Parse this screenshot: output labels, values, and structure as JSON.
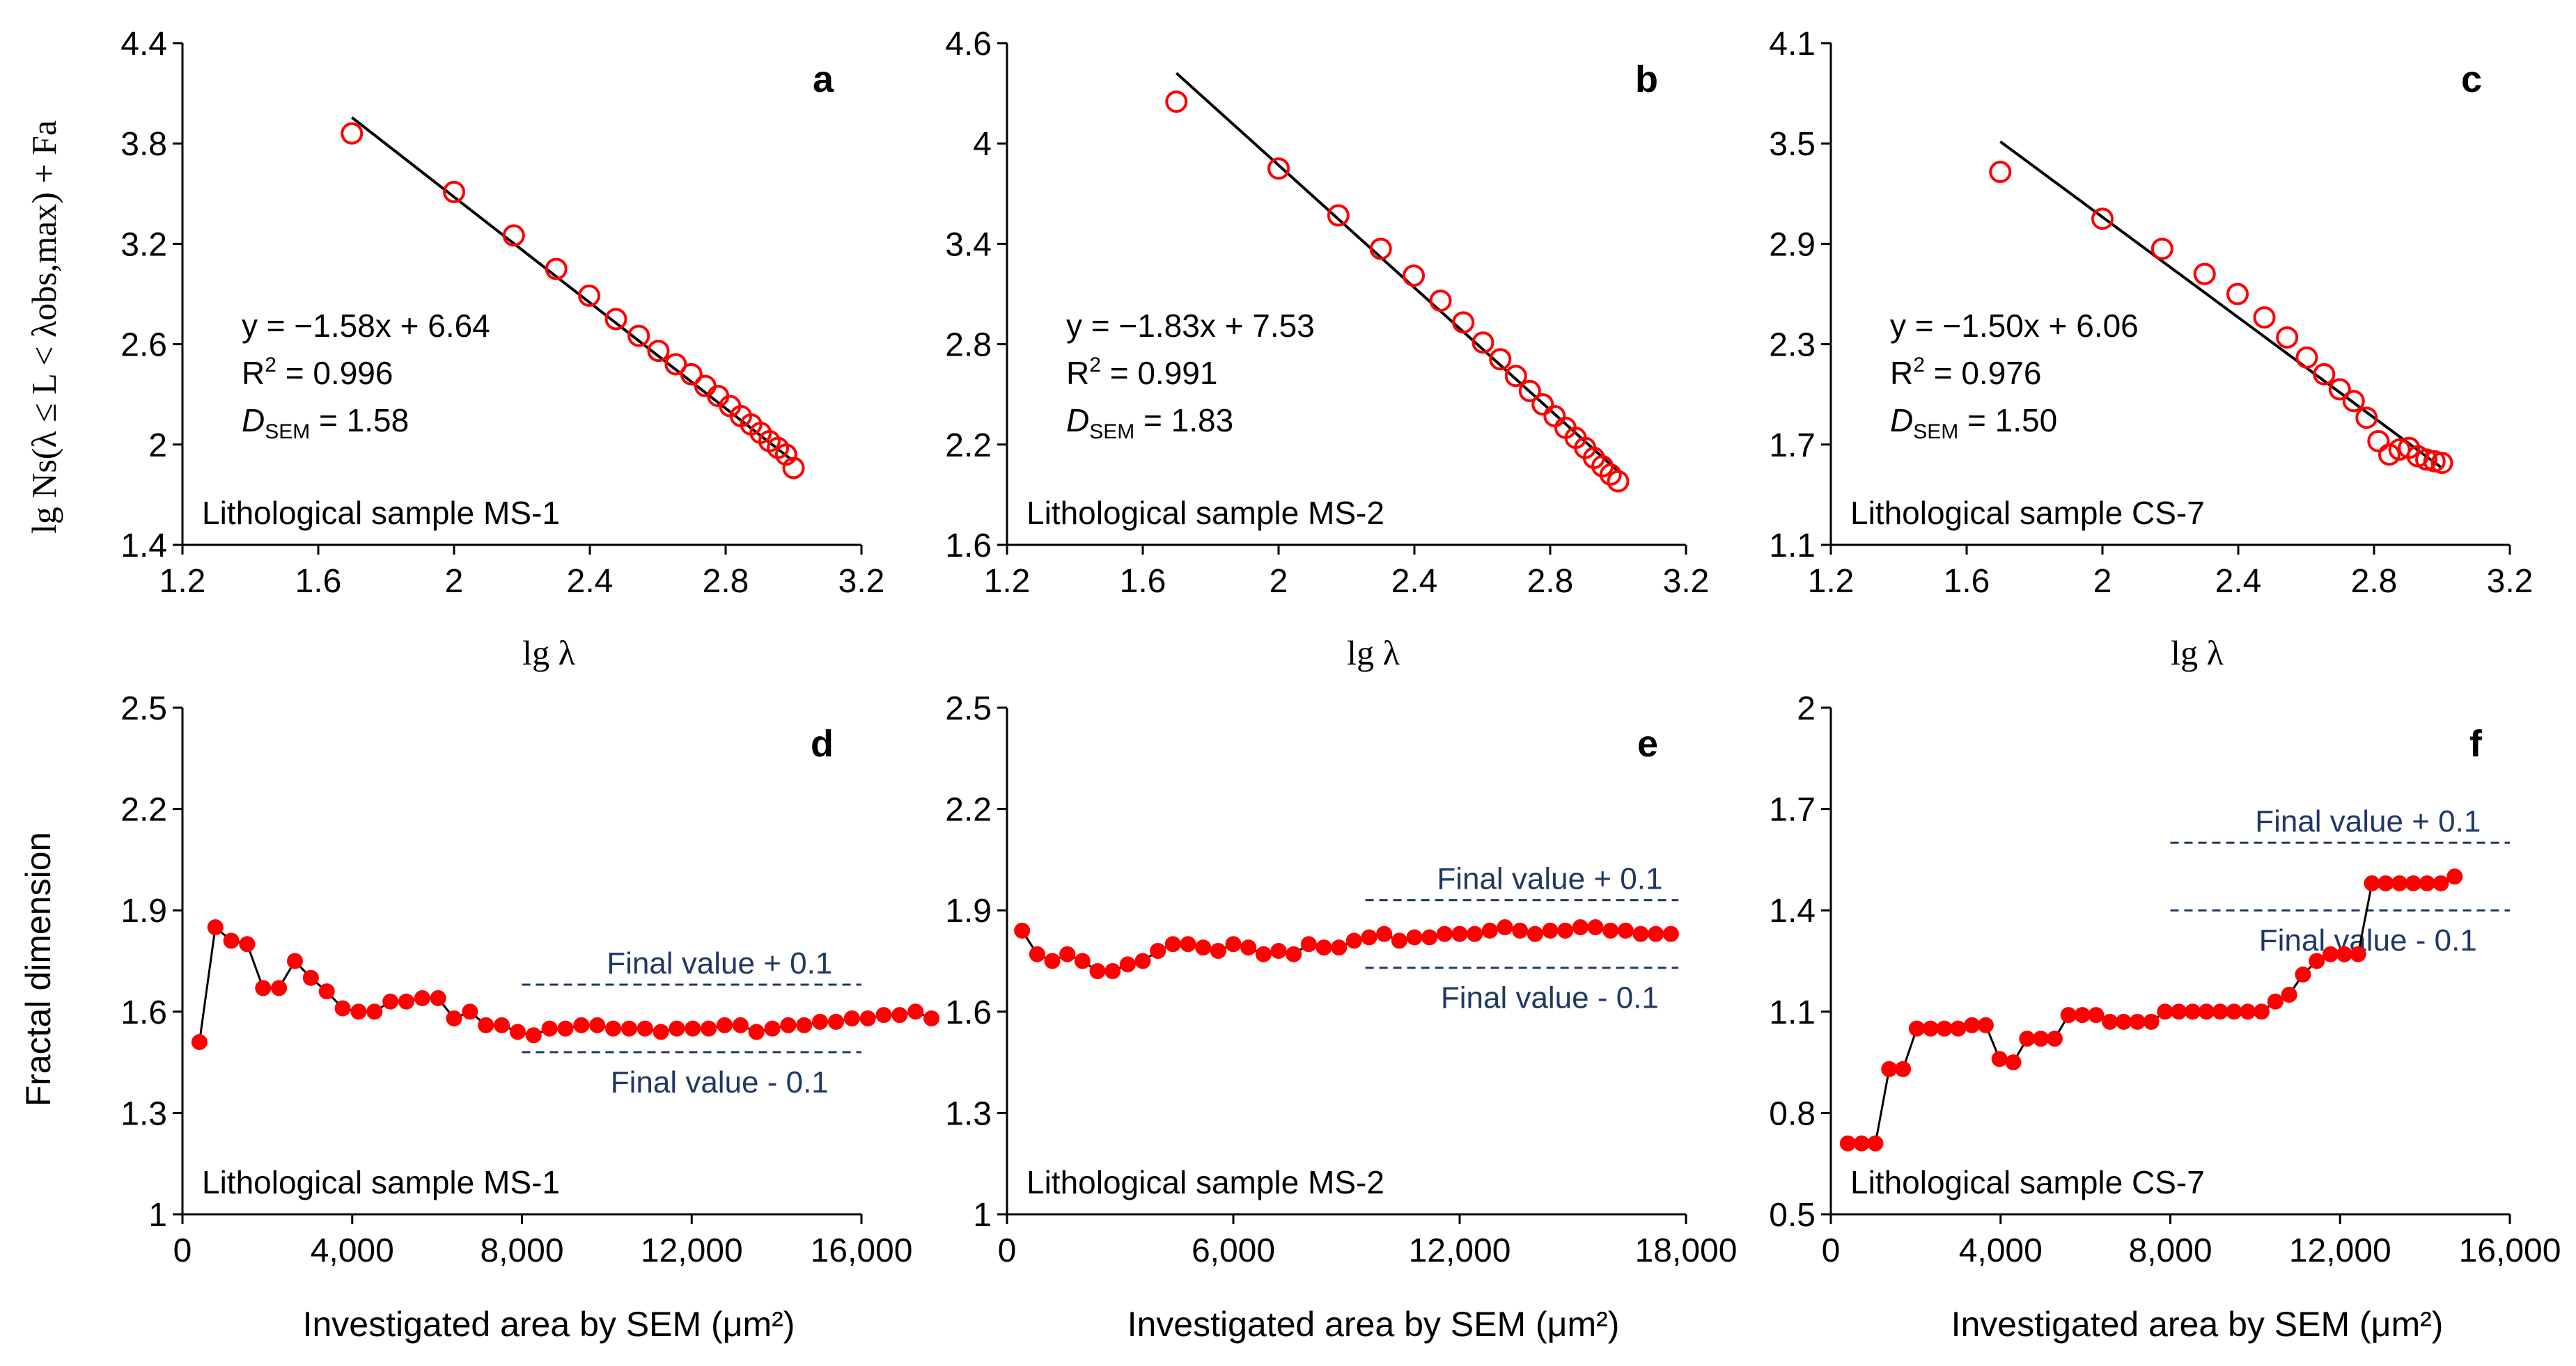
{
  "colors": {
    "marker": "#ff0000",
    "fit_line": "#000000",
    "final_value_lines": "#1f3864",
    "final_value_text": "#1f3864",
    "axis": "#000000"
  },
  "shared": {
    "top_xlabel": "lg λ",
    "top_ylabel": "lg Ns(λ ≤ L < λobs,max) + Fa",
    "bottom_ylabel": "Fractal dimension",
    "bottom_xlabel": "Investigated area by SEM (μm²)",
    "final_plus": "Final value + 0.1",
    "final_minus": "Final value - 0.1"
  },
  "chart_data": [
    {
      "panel": "a",
      "type": "scatter",
      "sample": "Lithological sample MS-1",
      "xlim": [
        1.2,
        3.2
      ],
      "ylim": [
        1.4,
        4.4
      ],
      "xticks": [
        1.2,
        1.6,
        2,
        2.4,
        2.8,
        3.2
      ],
      "xtick_labels": [
        "1.2",
        "1.6",
        "2",
        "2.4",
        "2.8",
        "3.2"
      ],
      "yticks": [
        1.4,
        2,
        2.6,
        3.2,
        3.8,
        4.4
      ],
      "ytick_labels": [
        "1.4",
        "2",
        "2.6",
        "3.2",
        "3.8",
        "4.4"
      ],
      "x": [
        1.699,
        2.0,
        2.176,
        2.301,
        2.398,
        2.477,
        2.544,
        2.602,
        2.653,
        2.699,
        2.74,
        2.778,
        2.813,
        2.845,
        2.875,
        2.903,
        2.929,
        2.954,
        2.978,
        3.0
      ],
      "y": [
        3.86,
        3.51,
        3.25,
        3.05,
        2.89,
        2.75,
        2.65,
        2.56,
        2.48,
        2.42,
        2.35,
        2.29,
        2.23,
        2.17,
        2.12,
        2.07,
        2.02,
        1.98,
        1.94,
        1.86
      ],
      "fit": {
        "slope": -1.58,
        "intercept": 6.64,
        "x_range": [
          1.699,
          3.0
        ]
      },
      "equation": "y = −1.58x + 6.64",
      "r2_label": "R",
      "r2_value": " = 0.996",
      "d_label": "D",
      "d_sub": "SEM",
      "d_value": " = 1.58"
    },
    {
      "panel": "b",
      "type": "scatter",
      "sample": "Lithological sample MS-2",
      "xlim": [
        1.2,
        3.2
      ],
      "ylim": [
        1.6,
        4.6
      ],
      "xticks": [
        1.2,
        1.6,
        2,
        2.4,
        2.8,
        3.2
      ],
      "xtick_labels": [
        "1.2",
        "1.6",
        "2",
        "2.4",
        "2.8",
        "3.2"
      ],
      "yticks": [
        1.6,
        2.2,
        2.8,
        3.4,
        4,
        4.6
      ],
      "ytick_labels": [
        "1.6",
        "2.2",
        "2.8",
        "3.4",
        "4",
        "4.6"
      ],
      "x": [
        1.699,
        2.0,
        2.176,
        2.301,
        2.398,
        2.477,
        2.544,
        2.602,
        2.653,
        2.699,
        2.74,
        2.778,
        2.813,
        2.845,
        2.875,
        2.903,
        2.929,
        2.954,
        2.978,
        3.0
      ],
      "y": [
        4.25,
        3.85,
        3.57,
        3.37,
        3.21,
        3.06,
        2.93,
        2.81,
        2.71,
        2.61,
        2.52,
        2.44,
        2.37,
        2.3,
        2.24,
        2.18,
        2.12,
        2.07,
        2.02,
        1.98
      ],
      "fit": {
        "slope": -1.83,
        "intercept": 7.53,
        "x_range": [
          1.699,
          3.0
        ]
      },
      "equation": "y = −1.83x + 7.53",
      "r2_label": "R",
      "r2_value": " = 0.991",
      "d_label": "D",
      "d_sub": "SEM",
      "d_value": " = 1.83"
    },
    {
      "panel": "c",
      "type": "scatter",
      "sample": "Lithological sample CS-7",
      "xlim": [
        1.2,
        3.2
      ],
      "ylim": [
        1.1,
        4.1
      ],
      "xticks": [
        1.2,
        1.6,
        2,
        2.4,
        2.8,
        3.2
      ],
      "xtick_labels": [
        "1.2",
        "1.6",
        "2",
        "2.4",
        "2.8",
        "3.2"
      ],
      "yticks": [
        1.1,
        1.7,
        2.3,
        2.9,
        3.5,
        4.1
      ],
      "ytick_labels": [
        "1.1",
        "1.7",
        "2.3",
        "2.9",
        "3.5",
        "4.1"
      ],
      "x": [
        1.699,
        2.0,
        2.176,
        2.301,
        2.398,
        2.477,
        2.544,
        2.602,
        2.653,
        2.699,
        2.74,
        2.778,
        2.813,
        2.845,
        2.875,
        2.903,
        2.929,
        2.954,
        2.978,
        3.0
      ],
      "y": [
        3.33,
        3.05,
        2.87,
        2.72,
        2.6,
        2.46,
        2.34,
        2.22,
        2.12,
        2.03,
        1.96,
        1.86,
        1.72,
        1.64,
        1.67,
        1.68,
        1.63,
        1.61,
        1.6,
        1.59
      ],
      "fit": {
        "slope": -1.5,
        "intercept": 6.06,
        "x_range": [
          1.699,
          3.0
        ]
      },
      "equation": "y = −1.50x + 6.06",
      "r2_label": "R",
      "r2_value": " = 0.976",
      "d_label": "D",
      "d_sub": "SEM",
      "d_value": " = 1.50"
    },
    {
      "panel": "d",
      "type": "line",
      "sample": "Lithological sample MS-1",
      "xlim": [
        0,
        16000
      ],
      "ylim": [
        1,
        2.5
      ],
      "xticks": [
        0,
        4000,
        8000,
        12000,
        16000
      ],
      "xtick_labels": [
        "0",
        "4,000",
        "8,000",
        "12,000",
        "16,000"
      ],
      "yticks": [
        1,
        1.3,
        1.6,
        1.9,
        2.2,
        2.5
      ],
      "ytick_labels": [
        "1",
        "1.3",
        "1.6",
        "1.9",
        "2.2",
        "2.5"
      ],
      "x_start": 400,
      "x_step": 375,
      "y": [
        1.51,
        1.85,
        1.81,
        1.8,
        1.67,
        1.67,
        1.75,
        1.7,
        1.66,
        1.61,
        1.6,
        1.6,
        1.63,
        1.63,
        1.64,
        1.64,
        1.58,
        1.6,
        1.56,
        1.56,
        1.54,
        1.53,
        1.55,
        1.55,
        1.56,
        1.56,
        1.55,
        1.55,
        1.55,
        1.54,
        1.55,
        1.55,
        1.55,
        1.56,
        1.56,
        1.54,
        1.55,
        1.56,
        1.56,
        1.57,
        1.57,
        1.58,
        1.58,
        1.59,
        1.59,
        1.6,
        1.58
      ],
      "final_plus": 1.68,
      "final_minus": 1.48,
      "final_line_xrange": [
        8000,
        16000
      ]
    },
    {
      "panel": "e",
      "type": "line",
      "sample": "Lithological sample MS-2",
      "xlim": [
        0,
        18000
      ],
      "ylim": [
        1,
        2.5
      ],
      "xticks": [
        0,
        6000,
        12000,
        18000
      ],
      "xtick_labels": [
        "0",
        "6,000",
        "12,000",
        "18,000"
      ],
      "yticks": [
        1,
        1.3,
        1.6,
        1.9,
        2.2,
        2.5
      ],
      "ytick_labels": [
        "1",
        "1.3",
        "1.6",
        "1.9",
        "2.2",
        "2.5"
      ],
      "x_start": 400,
      "x_step": 400,
      "y": [
        1.84,
        1.77,
        1.75,
        1.77,
        1.75,
        1.72,
        1.72,
        1.74,
        1.75,
        1.78,
        1.8,
        1.8,
        1.79,
        1.78,
        1.8,
        1.79,
        1.77,
        1.78,
        1.77,
        1.8,
        1.79,
        1.79,
        1.81,
        1.82,
        1.83,
        1.81,
        1.82,
        1.82,
        1.83,
        1.83,
        1.83,
        1.84,
        1.85,
        1.84,
        1.83,
        1.84,
        1.84,
        1.85,
        1.85,
        1.84,
        1.84,
        1.83,
        1.83,
        1.83
      ],
      "final_plus": 1.93,
      "final_minus": 1.73,
      "final_line_xrange": [
        9500,
        17800
      ]
    },
    {
      "panel": "f",
      "type": "line",
      "sample": "Lithological sample CS-7",
      "xlim": [
        0,
        16000
      ],
      "ylim": [
        0.5,
        2
      ],
      "xticks": [
        0,
        4000,
        8000,
        12000,
        16000
      ],
      "xtick_labels": [
        "0",
        "4,000",
        "8,000",
        "12,000",
        "16,000"
      ],
      "yticks": [
        0.5,
        0.8,
        1.1,
        1.4,
        1.7,
        2
      ],
      "ytick_labels": [
        "0.5",
        "0.8",
        "1.1",
        "1.4",
        "1.7",
        "2"
      ],
      "x_start": 400,
      "x_step": 325,
      "y": [
        0.71,
        0.71,
        0.71,
        0.93,
        0.93,
        1.05,
        1.05,
        1.05,
        1.05,
        1.06,
        1.06,
        0.96,
        0.95,
        1.02,
        1.02,
        1.02,
        1.09,
        1.09,
        1.09,
        1.07,
        1.07,
        1.07,
        1.07,
        1.1,
        1.1,
        1.1,
        1.1,
        1.1,
        1.1,
        1.1,
        1.1,
        1.13,
        1.15,
        1.21,
        1.25,
        1.27,
        1.27,
        1.27,
        1.48,
        1.48,
        1.48,
        1.48,
        1.48,
        1.48,
        1.5
      ],
      "final_plus": 1.6,
      "final_minus": 1.4,
      "final_line_xrange": [
        8000,
        16000
      ]
    }
  ]
}
